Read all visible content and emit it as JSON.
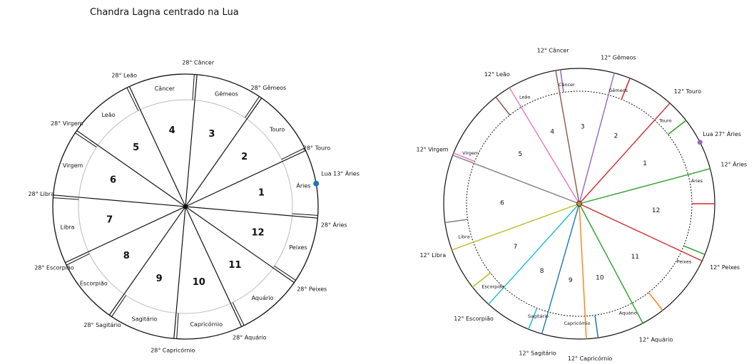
{
  "title": "Chandra Lagna centrado na Lua",
  "left_chart": {
    "cusps": [
      {
        "sign": "Áries",
        "label": "28° Áries"
      },
      {
        "sign": "Touro",
        "label": "28° Touro"
      },
      {
        "sign": "Gêmeos",
        "label": "28° Gêmeos"
      },
      {
        "sign": "Câncer",
        "label": "28° Câncer"
      },
      {
        "sign": "Leão",
        "label": "28° Leão"
      },
      {
        "sign": "Virgem",
        "label": "28° Virgem"
      },
      {
        "sign": "Libra",
        "label": "28° Libra"
      },
      {
        "sign": "Escorpião",
        "label": "28° Escorpião"
      },
      {
        "sign": "Sagitário",
        "label": "28° Sagitário"
      },
      {
        "sign": "Capricórnio",
        "label": "28° Capricórnio"
      },
      {
        "sign": "Aquário",
        "label": "28° Aquário"
      },
      {
        "sign": "Peixes",
        "label": "28° Peixes"
      }
    ],
    "houses": [
      "1",
      "2",
      "3",
      "4",
      "5",
      "6",
      "7",
      "8",
      "9",
      "10",
      "11",
      "12"
    ],
    "planet": {
      "label": "Lua 13° Áries",
      "color": "#1f77b4"
    }
  },
  "right_chart": {
    "cusps": [
      {
        "sign": "Áries",
        "label": "12° Áries",
        "color": "#2ca02c"
      },
      {
        "sign": "Touro",
        "label": "12° Touro",
        "color": "#d62728"
      },
      {
        "sign": "Gêmeos",
        "label": "12° Gêmeos",
        "color": "#9467bd"
      },
      {
        "sign": "Câncer",
        "label": "12° Câncer",
        "color": "#8c564b"
      },
      {
        "sign": "Leão",
        "label": "12° Leão",
        "color": "#e377c2"
      },
      {
        "sign": "Virgem",
        "label": "12° Virgem",
        "color": "#7f7f7f"
      },
      {
        "sign": "Libra",
        "label": "12° Libra",
        "color": "#bcbd22"
      },
      {
        "sign": "Escorpião",
        "label": "12° Escorpião",
        "color": "#17becf"
      },
      {
        "sign": "Sagitário",
        "label": "12° Sagitário",
        "color": "#1f77b4"
      },
      {
        "sign": "Capricórnio",
        "label": "12° Capricórnio",
        "color": "#ff7f0e"
      },
      {
        "sign": "Aquário",
        "label": "12° Aquário",
        "color": "#2ca02c"
      },
      {
        "sign": "Peixes",
        "label": "12° Peixes",
        "color": "#d62728"
      }
    ],
    "houses": [
      "1",
      "2",
      "3",
      "4",
      "5",
      "6",
      "7",
      "8",
      "9",
      "10",
      "11",
      "12"
    ],
    "planet": {
      "label": "Lua 27° Áries",
      "color": "#9467bd"
    }
  }
}
